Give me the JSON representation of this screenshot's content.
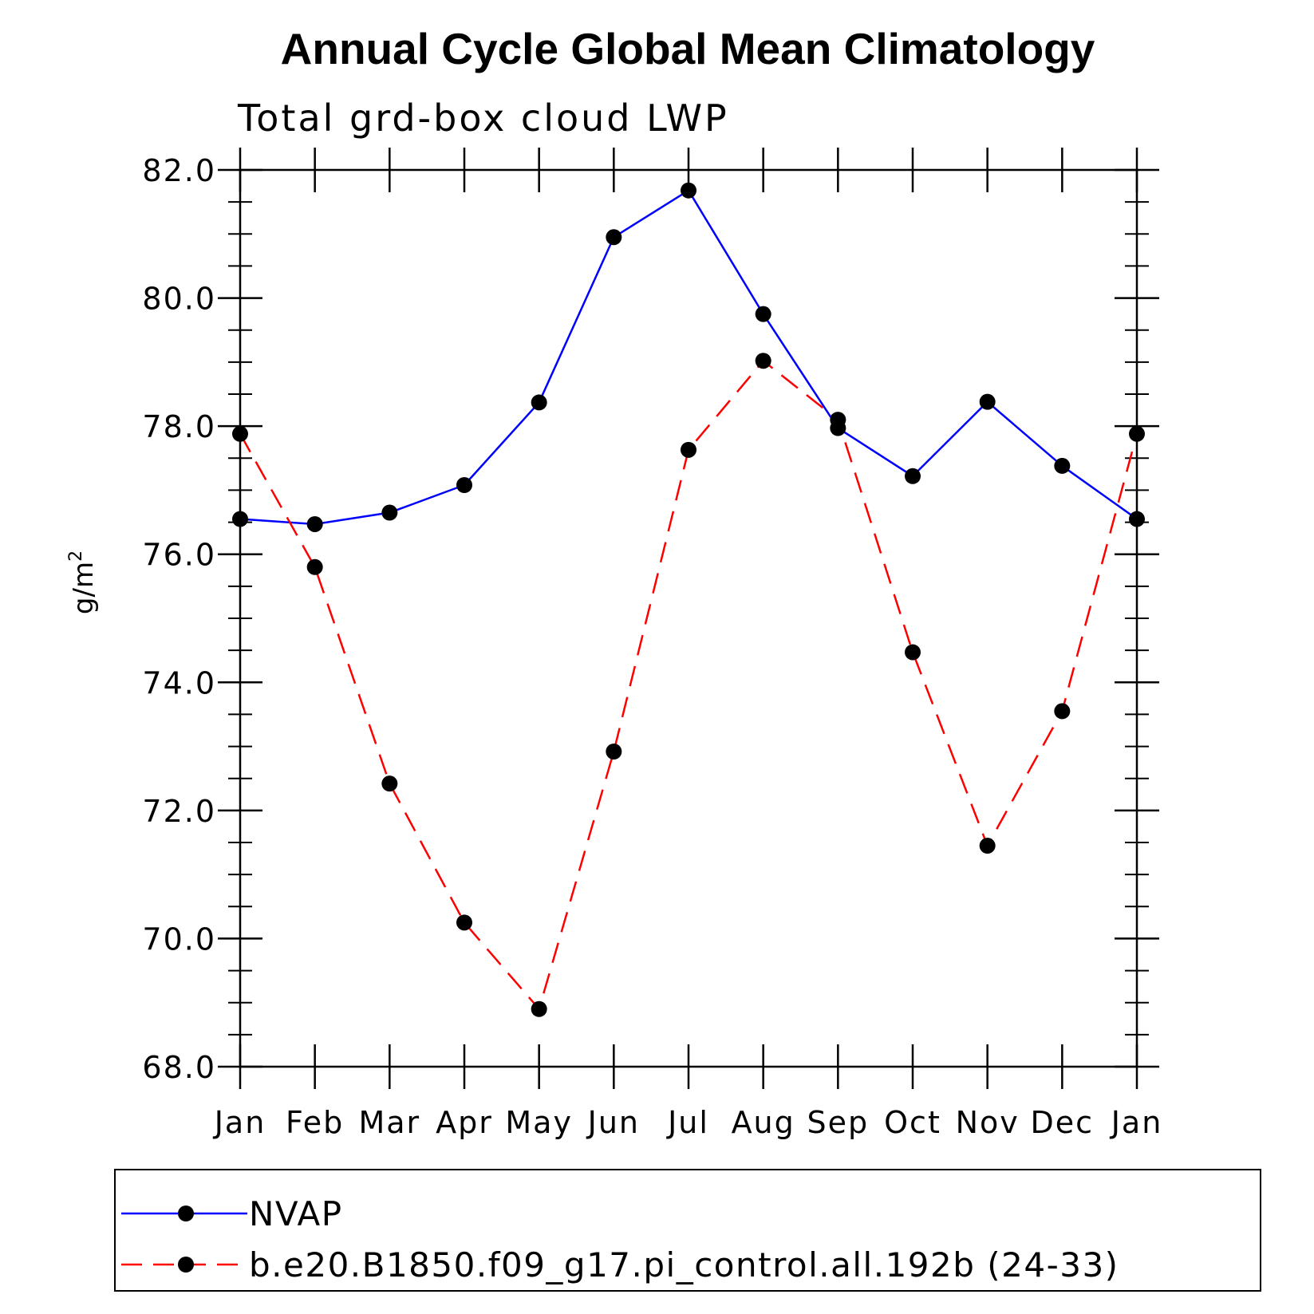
{
  "chart_data": {
    "type": "line",
    "title": "Annual Cycle Global Mean Climatology",
    "subtitle": "Total grd-box cloud LWP",
    "ylabel": "g/m",
    "ylabel_superscript": "2",
    "xlabel": "",
    "ylim": [
      68.0,
      82.0
    ],
    "y_ticks": [
      "68.0",
      "70.0",
      "72.0",
      "74.0",
      "76.0",
      "78.0",
      "80.0",
      "82.0"
    ],
    "y_tick_values": [
      68,
      70,
      72,
      74,
      76,
      78,
      80,
      82
    ],
    "categories": [
      "Jan",
      "Feb",
      "Mar",
      "Apr",
      "May",
      "Jun",
      "Jul",
      "Aug",
      "Sep",
      "Oct",
      "Nov",
      "Dec",
      "Jan"
    ],
    "series": [
      {
        "name": "NVAP",
        "color": "#0000ff",
        "style": "solid",
        "values": [
          76.55,
          76.47,
          76.65,
          77.08,
          78.37,
          80.95,
          81.68,
          79.75,
          77.97,
          77.22,
          78.38,
          77.38,
          76.55
        ]
      },
      {
        "name": "b.e20.B1850.f09_g17.pi_control.all.192b (24-33)",
        "color": "#ff0000",
        "style": "dashed",
        "values": [
          77.88,
          75.8,
          72.42,
          70.25,
          68.9,
          72.92,
          77.63,
          79.02,
          78.1,
          74.47,
          71.45,
          73.55,
          77.88
        ]
      }
    ],
    "legend_position": "bottom"
  }
}
